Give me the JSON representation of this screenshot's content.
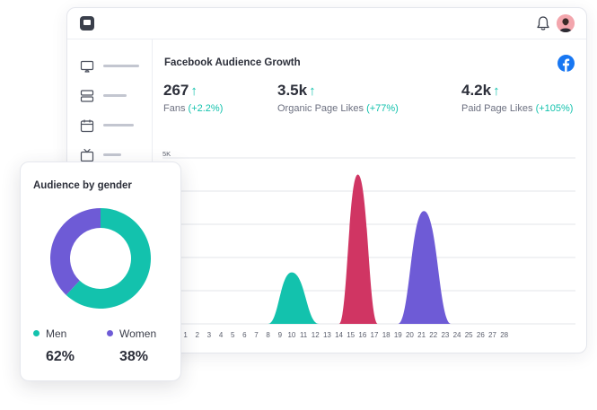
{
  "header": {
    "logo_icon": "chat-logo-icon",
    "bell_icon": "bell-icon",
    "avatar_icon": "user-avatar-icon"
  },
  "sidebar": {
    "items": [
      {
        "icon": "display-icon"
      },
      {
        "icon": "layers-icon"
      },
      {
        "icon": "calendar-icon"
      },
      {
        "icon": "tv-icon"
      }
    ]
  },
  "panel": {
    "title": "Facebook Audience Growth",
    "brand_icon": "facebook-icon"
  },
  "kpis": [
    {
      "value": "267",
      "label": "Fans",
      "change": "(+2.2%)"
    },
    {
      "value": "3.5k",
      "label": "Organic Page Likes",
      "change": "(+77%)"
    },
    {
      "value": "4.2k",
      "label": "Paid Page Likes",
      "change": "(+105%)"
    }
  ],
  "colors": {
    "accent_teal": "#13c2ad",
    "crimson": "#d03563",
    "purple": "#6e5bd6",
    "facebook_blue": "#1877f2"
  },
  "chart_data": {
    "type": "area",
    "title": "Facebook Audience Growth",
    "y_tick_label": "5K",
    "ylim": [
      0,
      5000
    ],
    "x_ticks": [
      "1",
      "2",
      "3",
      "4",
      "5",
      "6",
      "7",
      "8",
      "9",
      "10",
      "11",
      "12",
      "13",
      "14",
      "15",
      "16",
      "17",
      "18",
      "19",
      "20",
      "21",
      "22",
      "23",
      "24",
      "25",
      "26",
      "27",
      "28"
    ],
    "series": [
      {
        "name": "Fans",
        "color": "#13c2ad",
        "start": 8.0,
        "peak": 10.0,
        "end": 12.3,
        "value": 1550
      },
      {
        "name": "Organic Page Likes",
        "color": "#d03563",
        "start": 14.0,
        "peak": 15.6,
        "end": 17.3,
        "value": 4500
      },
      {
        "name": "Paid Page Likes",
        "color": "#6e5bd6",
        "start": 19.0,
        "peak": 21.2,
        "end": 23.5,
        "value": 3400
      }
    ]
  },
  "gender": {
    "title": "Audience by gender",
    "segments": [
      {
        "label": "Men",
        "percent_label": "62%",
        "value": 62,
        "color": "#13c2ad"
      },
      {
        "label": "Women",
        "percent_label": "38%",
        "value": 38,
        "color": "#6e5bd6"
      }
    ]
  }
}
